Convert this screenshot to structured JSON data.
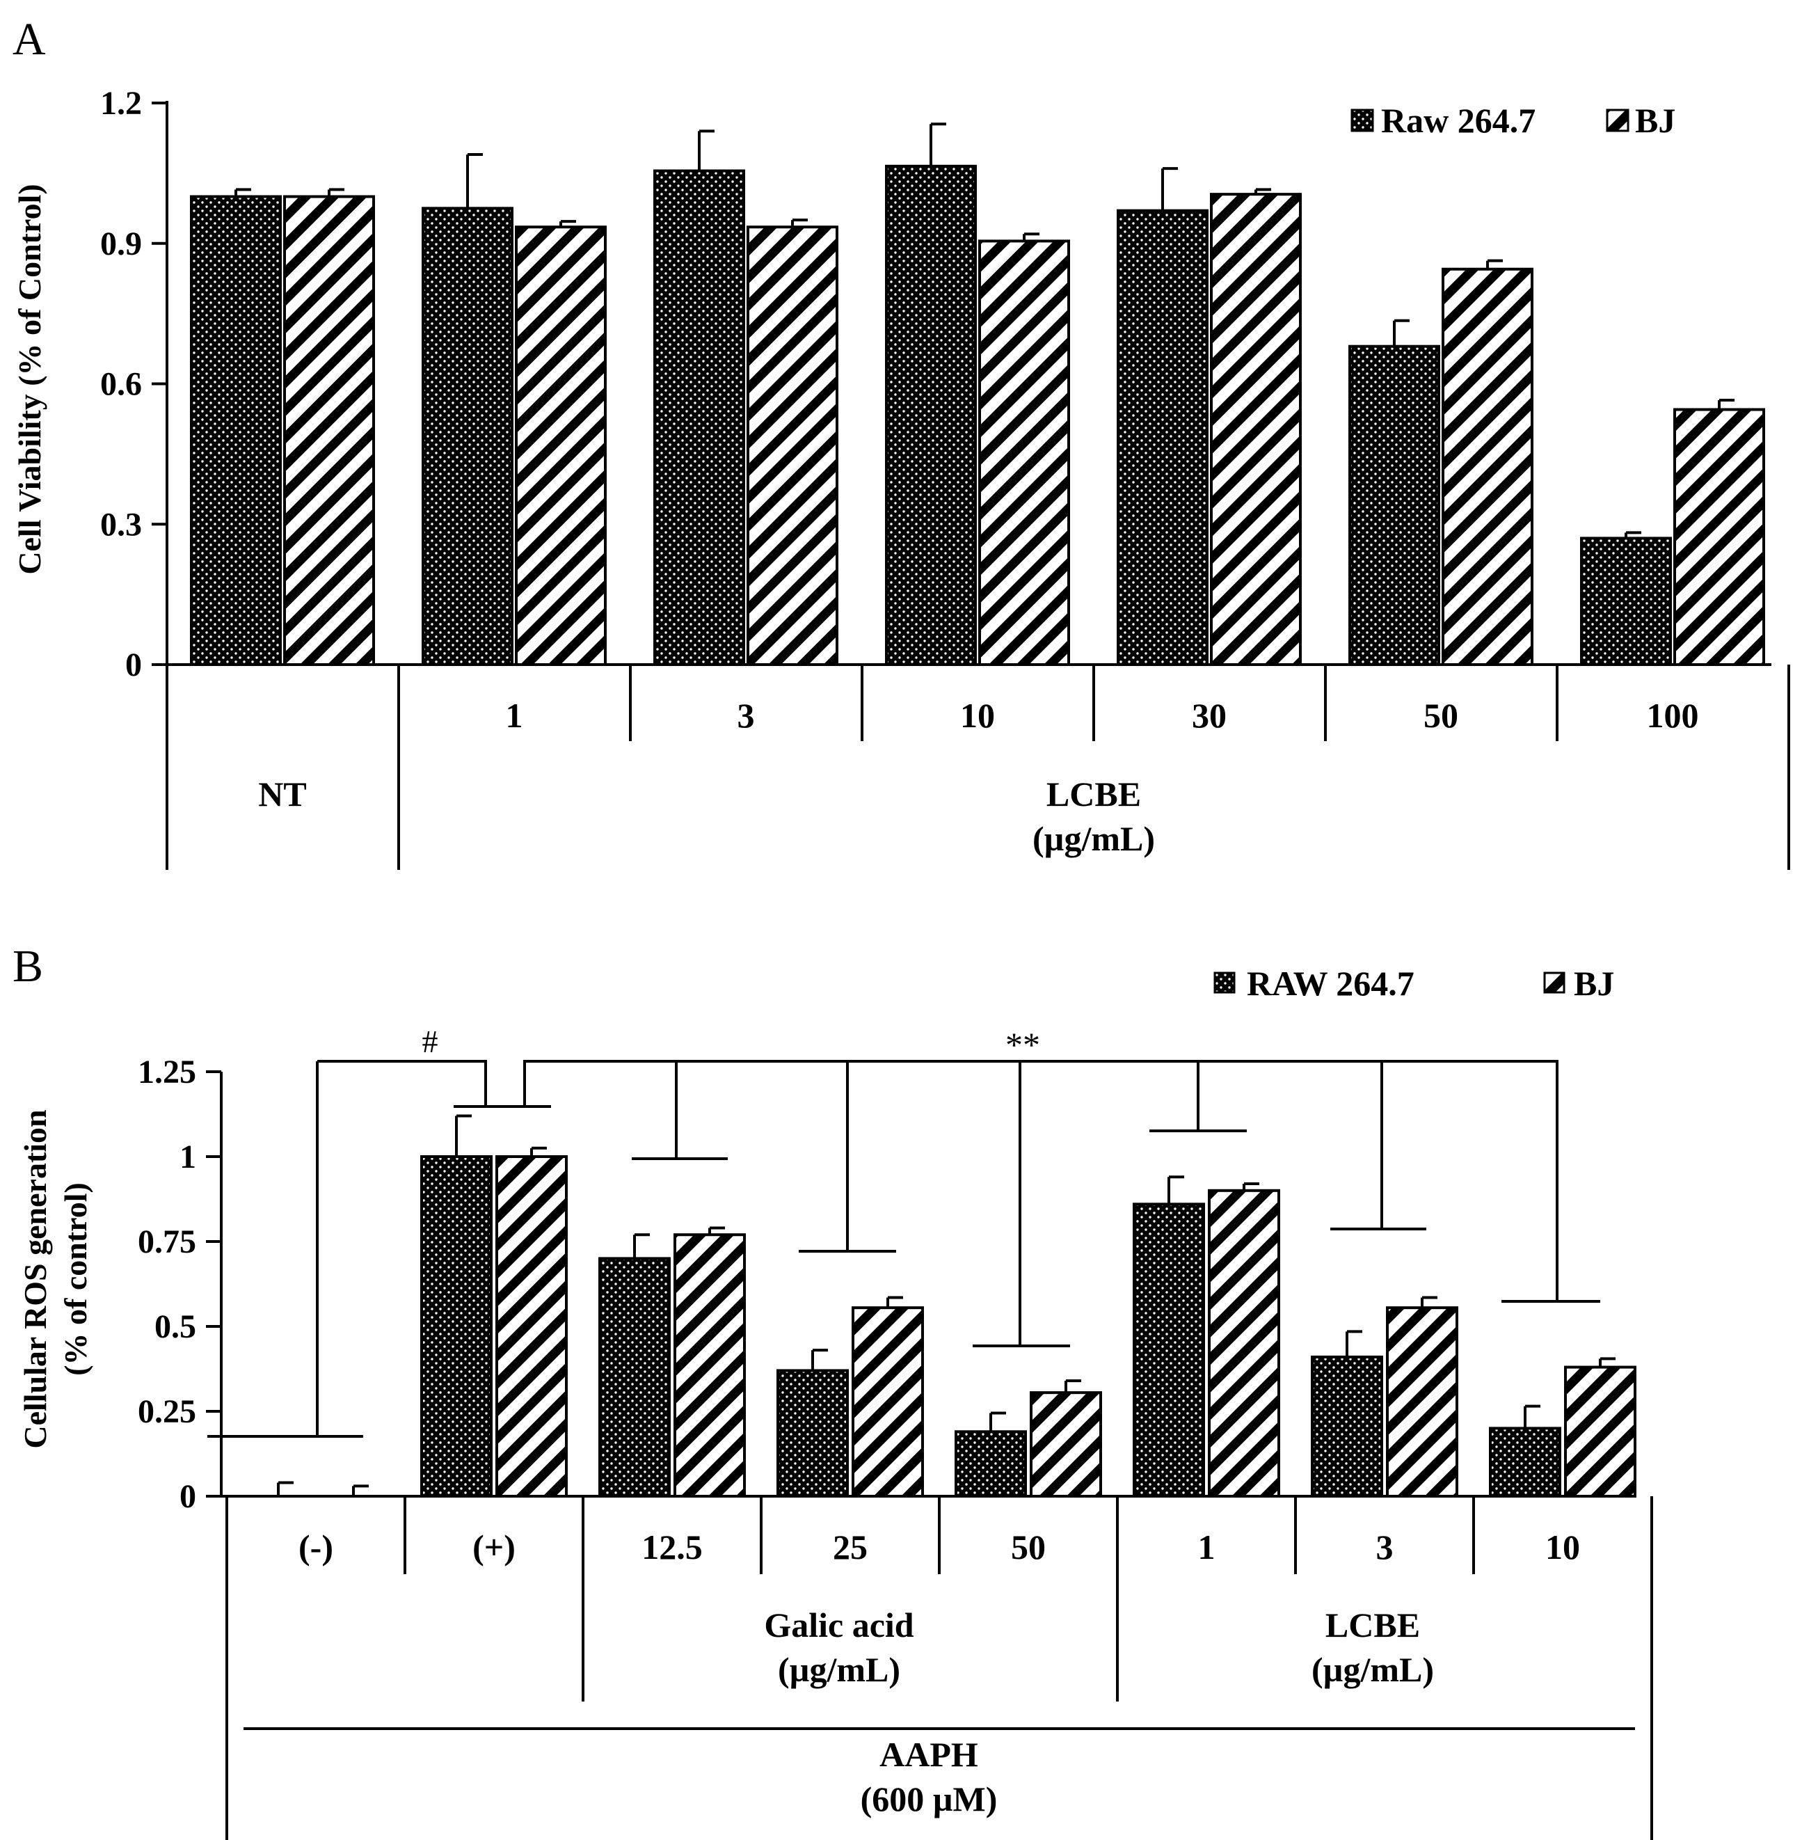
{
  "chart_data": [
    {
      "panel_label": "A",
      "type": "bar",
      "ylabel": "Cell Viability (% of Control)",
      "yticks": [
        "0",
        "0.3",
        "0.6",
        "0.9",
        "1.2"
      ],
      "ylim": [
        0,
        1.2
      ],
      "categories": [
        "NT",
        "1",
        "3",
        "10",
        "30",
        "50",
        "100"
      ],
      "groups": [
        {
          "label": "NT",
          "sub": ""
        },
        {
          "label": "LCBE",
          "sub": "(µg/mL)"
        }
      ],
      "legend": [
        "Raw 264.7",
        "BJ"
      ],
      "series": [
        {
          "name": "Raw 264.7",
          "pattern": "dots",
          "values": [
            1.0,
            0.975,
            1.055,
            1.065,
            0.97,
            0.68,
            0.27
          ],
          "errors": [
            0.015,
            0.115,
            0.085,
            0.09,
            0.09,
            0.055,
            0.012
          ]
        },
        {
          "name": "BJ",
          "pattern": "stripes",
          "values": [
            1.0,
            0.935,
            0.935,
            0.905,
            1.005,
            0.845,
            0.545
          ],
          "errors": [
            0.015,
            0.012,
            0.015,
            0.015,
            0.01,
            0.018,
            0.02
          ]
        }
      ]
    },
    {
      "panel_label": "B",
      "type": "bar",
      "ylabel_line1": "Cellular ROS generation",
      "ylabel_line2": "(% of control)",
      "yticks": [
        "0",
        "0.25",
        "0.5",
        "0.75",
        "1",
        "1.25"
      ],
      "ylim": [
        0,
        1.25
      ],
      "categories": [
        "(-)",
        "(+)",
        "12.5",
        "25",
        "50",
        "1",
        "3",
        "10"
      ],
      "groups": [
        {
          "label": "Galic acid",
          "sub": "(µg/mL)"
        },
        {
          "label": "LCBE",
          "sub": "(µg/mL)"
        }
      ],
      "outer_group": {
        "label": "AAPH",
        "sub": "(600 µM)"
      },
      "legend": [
        "RAW 264.7",
        "BJ"
      ],
      "annotations": [
        "#",
        "**"
      ],
      "series": [
        {
          "name": "RAW 264.7",
          "pattern": "dots",
          "values": [
            0.0,
            1.0,
            0.7,
            0.37,
            0.19,
            0.86,
            0.41,
            0.2
          ],
          "errors": [
            0.04,
            0.12,
            0.07,
            0.06,
            0.055,
            0.08,
            0.075,
            0.065
          ]
        },
        {
          "name": "BJ",
          "pattern": "stripes",
          "values": [
            0.0,
            1.0,
            0.77,
            0.555,
            0.305,
            0.9,
            0.555,
            0.38
          ],
          "errors": [
            0.03,
            0.025,
            0.02,
            0.03,
            0.035,
            0.02,
            0.03,
            0.025
          ]
        }
      ]
    }
  ]
}
